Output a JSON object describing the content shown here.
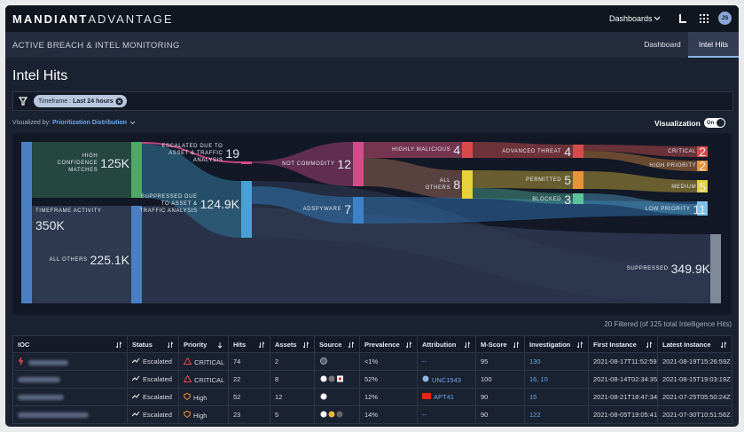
{
  "header": {
    "brand": "MANDIANT",
    "product": "ADVANTAGE",
    "menu": "Dashboards",
    "avatar": "JS"
  },
  "subheader": {
    "title": "ACTIVE BREACH & INTEL MONITORING",
    "tabs": [
      "Dashboard",
      "Intel Hits"
    ]
  },
  "page": {
    "title": "Intel Hits",
    "filter": {
      "label": "Timeframe :",
      "value": "Last 24 hours"
    },
    "visualized_by": {
      "label": "Visualized by:",
      "value": "Prioritization Distribution"
    },
    "toggle": {
      "label": "Visualization",
      "state": "On"
    }
  },
  "sankey": {
    "nodes": [
      {
        "label": "HIGH CONFIDENCE MATCHES",
        "value": "125K"
      },
      {
        "label": "TIMEFRAME ACTIVITY",
        "value": "350K"
      },
      {
        "label": "ALL OTHERS",
        "value": "225.1K"
      },
      {
        "label": "ESCALATED DUE TO ASSET & TRAFFIC ANALYSIS",
        "value": "19"
      },
      {
        "label": "SUPPRESSED DUE TO ASSET & TRAFFIC ANALYSIS",
        "value": "124.9K"
      },
      {
        "label": "NOT COMMODITY",
        "value": "12"
      },
      {
        "label": "ADSPYWARE",
        "value": "7"
      },
      {
        "label": "HIGHLY MALICIOUS",
        "value": "4"
      },
      {
        "label": "ALL OTHERS",
        "value": "8"
      },
      {
        "label": "ADVANCED THREAT",
        "value": "4"
      },
      {
        "label": "PERMITTED",
        "value": "5"
      },
      {
        "label": "BLOCKED",
        "value": "3"
      },
      {
        "label": "CRITICAL",
        "value": "2"
      },
      {
        "label": "HIGH PRIORITY",
        "value": "2"
      },
      {
        "label": "MEDIUM",
        "value": "5"
      },
      {
        "label": "LOW PRIORITY",
        "value": "11"
      },
      {
        "label": "SUPPRESSED",
        "value": "349.9K"
      }
    ]
  },
  "summary": "20 Filtered (of 125 total Intelligence Hits)",
  "table": {
    "columns": [
      "IOC",
      "Status",
      "Priority",
      "Hits",
      "Assets",
      "Source",
      "Prevalence",
      "Attribution",
      "M-Score",
      "Investigation",
      "First Instance",
      "Latest Instance"
    ],
    "rows": [
      {
        "status": "Escalated",
        "priority": "CRITICAL",
        "hits": "74",
        "assets": "2",
        "prevalence": "<1%",
        "attribution": "--",
        "m_score": "95",
        "investigation": "130",
        "first_instance": "2021-08-17T11:52:59Z",
        "latest_instance": "2021-08-19T15:26:59Z"
      },
      {
        "status": "Escalated",
        "priority": "CRITICAL",
        "hits": "22",
        "assets": "8",
        "prevalence": "52%",
        "attribution": "UNC1543",
        "m_score": "100",
        "investigation": "16, 10",
        "first_instance": "2021-08-14T02:34:35Z",
        "latest_instance": "2021-08-15T19:03:19Z"
      },
      {
        "status": "Escalated",
        "priority": "High",
        "hits": "52",
        "assets": "12",
        "prevalence": "12%",
        "attribution": "APT41",
        "m_score": "90",
        "investigation": "15",
        "first_instance": "2021-08-21T18:47:34Z",
        "latest_instance": "2021-07-25T05:50:24Z"
      },
      {
        "status": "Escalated",
        "priority": "High",
        "hits": "23",
        "assets": "5",
        "prevalence": "14%",
        "attribution": "--",
        "m_score": "90",
        "investigation": "122",
        "first_instance": "2021-08-05T19:05:41Z",
        "latest_instance": "2021-07-30T10:51:56Z"
      }
    ]
  }
}
